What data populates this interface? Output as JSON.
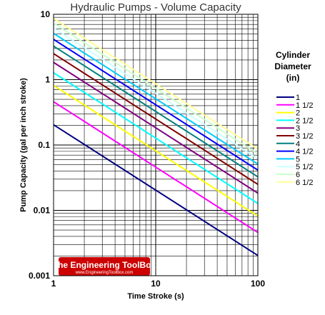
{
  "chart_data": {
    "type": "line",
    "title": "Hydraulic Pumps - Volume Capacity",
    "xlabel": "Time Stroke (s)",
    "ylabel": "Pump Capacity (gal per inch stroke)",
    "x_scale": "log",
    "y_scale": "log",
    "xlim": [
      1,
      100
    ],
    "ylim": [
      0.001,
      10
    ],
    "x_ticks": [
      "1",
      "10",
      "100"
    ],
    "y_ticks": [
      "0.001",
      "0.01",
      "0.1",
      "1",
      "10"
    ],
    "grid": true,
    "legend_title": "Cylinder Diameter (in)",
    "legend_title_lines": [
      "Cylinder",
      "Diameter",
      "(in)"
    ],
    "legend_position": "right",
    "x": [
      1,
      100
    ],
    "series": [
      {
        "name": "1",
        "color": "#000080",
        "values": [
          0.204,
          0.00204
        ]
      },
      {
        "name": "1 1/2",
        "color": "#ff00ff",
        "values": [
          0.459,
          0.00459
        ]
      },
      {
        "name": "2",
        "color": "#ffff00",
        "values": [
          0.816,
          0.00816
        ]
      },
      {
        "name": "2 1/2",
        "color": "#00ffff",
        "values": [
          1.275,
          0.01275
        ]
      },
      {
        "name": "3",
        "color": "#800080",
        "values": [
          1.836,
          0.01836
        ]
      },
      {
        "name": "3 1/2",
        "color": "#800000",
        "values": [
          2.5,
          0.025
        ]
      },
      {
        "name": "4",
        "color": "#008080",
        "values": [
          3.26,
          0.0326
        ]
      },
      {
        "name": "4 1/2",
        "color": "#0000ff",
        "values": [
          4.13,
          0.0413
        ]
      },
      {
        "name": "5",
        "color": "#00ccff",
        "values": [
          5.1,
          0.051
        ]
      },
      {
        "name": "5 1/2",
        "color": "#ccffff",
        "values": [
          6.17,
          0.0617
        ]
      },
      {
        "name": "6",
        "color": "#ccffcc",
        "values": [
          7.34,
          0.0734
        ]
      },
      {
        "name": "6 1/2",
        "color": "#ffff99",
        "values": [
          8.62,
          0.0862
        ]
      }
    ]
  },
  "watermark": {
    "logo_text": "The Engineering ToolBox",
    "url_text": "www.EngineeringToolBox.com",
    "background": "#cc0000"
  }
}
